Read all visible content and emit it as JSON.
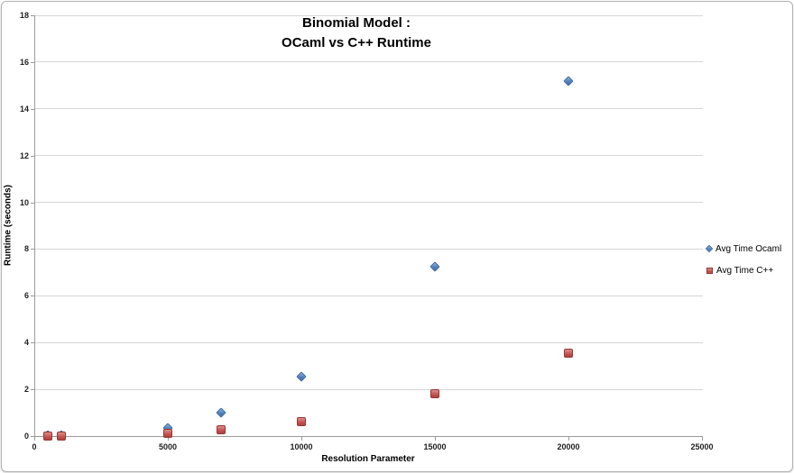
{
  "chart_data": {
    "type": "scatter",
    "title": "Binomial Model :\nOCaml vs C++ Runtime",
    "title_lines": [
      "Binomial Model :",
      "OCaml vs C++ Runtime"
    ],
    "xlabel": "Resolution Parameter",
    "ylabel": "Runtime (seconds)",
    "xlim": [
      0,
      25000
    ],
    "ylim": [
      0,
      18
    ],
    "xticks": [
      0,
      5000,
      10000,
      15000,
      20000,
      25000
    ],
    "yticks": [
      0,
      2,
      4,
      6,
      8,
      10,
      12,
      14,
      16,
      18
    ],
    "grid": "horizontal-only",
    "legend_position": "right",
    "x": [
      500,
      1000,
      5000,
      7000,
      10000,
      15000,
      20000
    ],
    "series": [
      {
        "name": "Avg Time Ocaml",
        "marker": "diamond",
        "color": "#4F81BD",
        "border_color": "#3A67A0",
        "values": [
          0.02,
          0.05,
          0.35,
          1.0,
          2.55,
          7.25,
          15.2
        ]
      },
      {
        "name": "Avg Time C++",
        "marker": "square",
        "color": "#C0504D",
        "border_color": "#943634",
        "values": [
          0.0,
          0.0,
          0.1,
          0.28,
          0.62,
          1.8,
          3.55
        ]
      }
    ],
    "colors": {
      "gridline": "#D6D6D6",
      "axis": "#9B9B9B",
      "tick_label": "#1F1F1F",
      "background": "#FFFFFF"
    }
  }
}
